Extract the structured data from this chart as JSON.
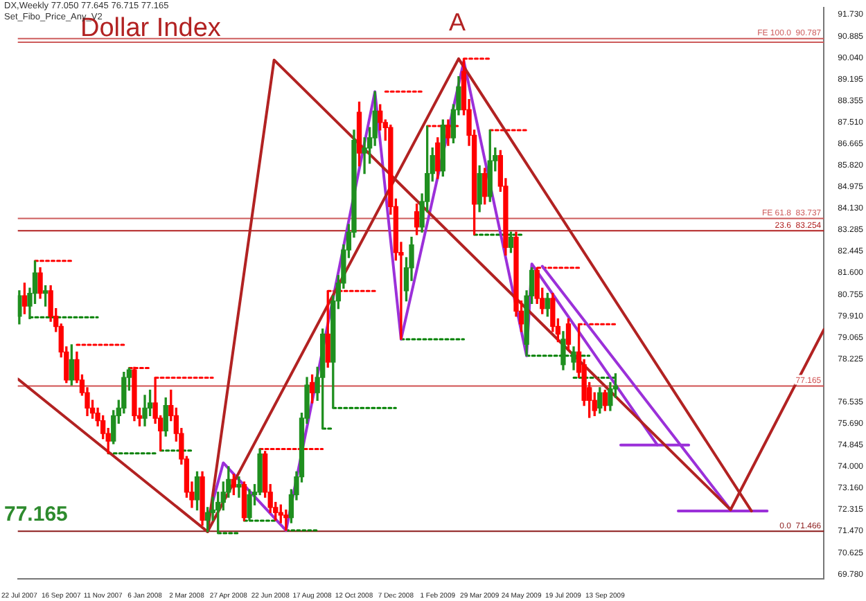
{
  "chart_data": {
    "type": "candlestick",
    "title": "Dollar Index",
    "subtitle": "DX,Weekly  77.050 77.645 76.715 77.165",
    "annotations": [
      "Set_Fibo_Price_Any_V2",
      "77.165",
      "A"
    ],
    "x": [
      "2007-07-22",
      "2007-07-29",
      "2007-08-05",
      "2007-08-12",
      "2007-08-19",
      "2007-08-26",
      "2007-09-02",
      "2007-09-09",
      "2007-09-16",
      "2007-09-23",
      "2007-09-30",
      "2007-10-07",
      "2007-10-14",
      "2007-10-21",
      "2007-10-28",
      "2007-11-04",
      "2007-11-11",
      "2007-11-18",
      "2007-11-25",
      "2007-12-02",
      "2007-12-09",
      "2007-12-16",
      "2007-12-23",
      "2007-12-30",
      "2008-01-06",
      "2008-01-13",
      "2008-01-20",
      "2008-01-27",
      "2008-02-03",
      "2008-02-10",
      "2008-02-17",
      "2008-02-24",
      "2008-03-02",
      "2008-03-09",
      "2008-03-16",
      "2008-03-23",
      "2008-03-30",
      "2008-04-06",
      "2008-04-13",
      "2008-04-20",
      "2008-04-27",
      "2008-05-04",
      "2008-05-11",
      "2008-05-18",
      "2008-05-25",
      "2008-06-01",
      "2008-06-08",
      "2008-06-15",
      "2008-06-22",
      "2008-06-29",
      "2008-07-06",
      "2008-07-13",
      "2008-07-20",
      "2008-07-27",
      "2008-08-03",
      "2008-08-10",
      "2008-08-17",
      "2008-08-24",
      "2008-08-31",
      "2008-09-07",
      "2008-09-14",
      "2008-09-21",
      "2008-09-28",
      "2008-10-05",
      "2008-10-12",
      "2008-10-19",
      "2008-10-26",
      "2008-11-02",
      "2008-11-09",
      "2008-11-16",
      "2008-11-23",
      "2008-11-30",
      "2008-12-07",
      "2008-12-14",
      "2008-12-21",
      "2008-12-28",
      "2009-01-04",
      "2009-01-11",
      "2009-01-18",
      "2009-01-25",
      "2009-02-01",
      "2009-02-08",
      "2009-02-15",
      "2009-02-22",
      "2009-03-01",
      "2009-03-08",
      "2009-03-15",
      "2009-03-22",
      "2009-03-29",
      "2009-04-05",
      "2009-04-12",
      "2009-04-19",
      "2009-04-26",
      "2009-05-03",
      "2009-05-10",
      "2009-05-17",
      "2009-05-24",
      "2009-05-31",
      "2009-06-07",
      "2009-06-14",
      "2009-06-21",
      "2009-06-28",
      "2009-07-05",
      "2009-07-12",
      "2009-07-19",
      "2009-07-26",
      "2009-08-02",
      "2009-08-09",
      "2009-08-16",
      "2009-08-23",
      "2009-08-30",
      "2009-09-06",
      "2009-09-13",
      "2009-09-20",
      "2009-09-27"
    ],
    "ohlc": [
      [
        79.9,
        80.9,
        79.6,
        80.7
      ],
      [
        80.7,
        81.2,
        80.0,
        80.3
      ],
      [
        80.3,
        81.0,
        79.8,
        80.8
      ],
      [
        80.8,
        82.07,
        80.4,
        81.6
      ],
      [
        81.6,
        81.8,
        80.6,
        80.8
      ],
      [
        80.8,
        81.1,
        80.3,
        80.9
      ],
      [
        80.9,
        81.1,
        79.7,
        79.9
      ],
      [
        79.9,
        80.2,
        79.3,
        79.5
      ],
      [
        79.5,
        79.6,
        78.3,
        78.5
      ],
      [
        78.5,
        78.7,
        77.3,
        77.4
      ],
      [
        77.4,
        78.78,
        77.2,
        78.2
      ],
      [
        78.2,
        78.5,
        77.3,
        77.4
      ],
      [
        77.4,
        77.6,
        76.8,
        76.9
      ],
      [
        76.9,
        77.1,
        76.0,
        76.3
      ],
      [
        76.3,
        76.6,
        75.9,
        76.1
      ],
      [
        76.1,
        76.3,
        75.6,
        75.8
      ],
      [
        75.8,
        76.0,
        75.1,
        75.3
      ],
      [
        75.3,
        75.5,
        74.52,
        75.0
      ],
      [
        75.0,
        76.2,
        74.9,
        76.0
      ],
      [
        76.0,
        76.6,
        75.7,
        76.3
      ],
      [
        76.3,
        77.7,
        76.1,
        77.5
      ],
      [
        77.5,
        77.87,
        77.0,
        77.8
      ],
      [
        77.8,
        77.9,
        75.8,
        76.0
      ],
      [
        76.0,
        76.3,
        75.6,
        75.9
      ],
      [
        75.9,
        76.8,
        75.6,
        76.3
      ],
      [
        76.3,
        77.0,
        76.0,
        76.5
      ],
      [
        76.5,
        77.49,
        75.7,
        75.9
      ],
      [
        75.9,
        76.0,
        74.63,
        75.4
      ],
      [
        75.4,
        76.7,
        75.2,
        76.4
      ],
      [
        76.4,
        77.0,
        75.8,
        76.0
      ],
      [
        76.0,
        76.3,
        75.0,
        75.3
      ],
      [
        75.3,
        75.5,
        74.1,
        74.3
      ],
      [
        74.3,
        74.4,
        72.8,
        73.0
      ],
      [
        73.0,
        73.4,
        72.4,
        72.7
      ],
      [
        72.7,
        73.8,
        72.3,
        73.6
      ],
      [
        73.6,
        73.8,
        71.7,
        71.9
      ],
      [
        71.9,
        72.4,
        71.45,
        72.2
      ],
      [
        72.2,
        72.8,
        71.9,
        72.3
      ],
      [
        72.3,
        73.0,
        71.39,
        72.6
      ],
      [
        72.6,
        73.4,
        72.3,
        73.0
      ],
      [
        73.0,
        74.0,
        72.8,
        73.5
      ],
      [
        73.5,
        73.7,
        72.9,
        73.2
      ],
      [
        73.2,
        73.6,
        72.8,
        73.3
      ],
      [
        73.3,
        73.4,
        71.88,
        72.0
      ],
      [
        72.0,
        73.1,
        71.9,
        72.9
      ],
      [
        72.9,
        73.3,
        72.5,
        73.0
      ],
      [
        73.0,
        74.69,
        72.9,
        74.5
      ],
      [
        74.5,
        74.6,
        72.8,
        73.0
      ],
      [
        73.0,
        73.3,
        72.2,
        72.4
      ],
      [
        72.4,
        72.6,
        71.9,
        72.2
      ],
      [
        72.2,
        72.5,
        71.8,
        72.1
      ],
      [
        72.1,
        72.3,
        71.5,
        72.0
      ],
      [
        72.0,
        73.1,
        71.8,
        72.9
      ],
      [
        72.9,
        73.8,
        72.7,
        73.6
      ],
      [
        73.6,
        76.1,
        73.4,
        75.9
      ],
      [
        75.9,
        77.5,
        75.7,
        77.2
      ],
      [
        77.3,
        77.6,
        76.5,
        76.9
      ],
      [
        76.9,
        77.9,
        76.6,
        77.5
      ],
      [
        77.5,
        79.4,
        75.49,
        79.2
      ],
      [
        79.2,
        80.89,
        77.9,
        78.1
      ],
      [
        78.1,
        80.7,
        76.3,
        80.5
      ],
      [
        80.5,
        81.5,
        80.2,
        81.2
      ],
      [
        81.2,
        82.7,
        81.0,
        82.5
      ],
      [
        82.5,
        83.5,
        82.2,
        83.2
      ],
      [
        83.2,
        87.2,
        83.0,
        86.8
      ],
      [
        87.9,
        88.3,
        85.8,
        86.3
      ],
      [
        86.3,
        86.9,
        85.5,
        86.5
      ],
      [
        86.5,
        87.3,
        85.9,
        86.9
      ],
      [
        86.9,
        88.71,
        86.6,
        87.95
      ],
      [
        87.95,
        88.2,
        87.2,
        87.5
      ],
      [
        87.5,
        87.6,
        86.8,
        87.3
      ],
      [
        87.3,
        87.4,
        83.9,
        84.2
      ],
      [
        84.2,
        84.5,
        82.1,
        82.4
      ],
      [
        82.4,
        82.8,
        79.0,
        82.3
      ],
      [
        80.9,
        82.2,
        80.5,
        81.8
      ],
      [
        81.8,
        83.0,
        81.3,
        82.7
      ],
      [
        84.0,
        84.3,
        83.1,
        83.4
      ],
      [
        83.4,
        84.7,
        83.2,
        84.4
      ],
      [
        84.4,
        87.36,
        84.0,
        85.5
      ],
      [
        85.5,
        86.5,
        85.2,
        86.2
      ],
      [
        86.7,
        86.9,
        85.3,
        85.6
      ],
      [
        85.6,
        87.6,
        85.4,
        87.4
      ],
      [
        87.4,
        87.6,
        86.6,
        86.9
      ],
      [
        86.9,
        88.2,
        86.7,
        88.0
      ],
      [
        88.0,
        89.3,
        87.8,
        88.9
      ],
      [
        89.5,
        90.0,
        87.8,
        88.0
      ],
      [
        88.0,
        88.4,
        86.6,
        87.0
      ],
      [
        87.0,
        87.2,
        83.1,
        84.3
      ],
      [
        84.3,
        85.8,
        84.0,
        85.5
      ],
      [
        85.5,
        85.7,
        84.3,
        84.6
      ],
      [
        84.6,
        87.2,
        84.4,
        86.0
      ],
      [
        86.0,
        86.5,
        85.6,
        86.2
      ],
      [
        86.2,
        86.4,
        84.8,
        85.0
      ],
      [
        85.0,
        85.3,
        82.3,
        82.6
      ],
      [
        82.6,
        83.2,
        82.4,
        83.0
      ],
      [
        83.0,
        83.2,
        79.9,
        80.1
      ],
      [
        80.1,
        80.5,
        79.3,
        79.6
      ],
      [
        78.8,
        80.9,
        78.35,
        80.7
      ],
      [
        80.7,
        81.8,
        80.4,
        81.7
      ],
      [
        81.7,
        81.8,
        80.4,
        80.6
      ],
      [
        80.6,
        81.0,
        80.0,
        80.2
      ],
      [
        80.2,
        80.8,
        79.9,
        80.6
      ],
      [
        80.6,
        80.8,
        79.3,
        79.5
      ],
      [
        79.5,
        79.8,
        78.9,
        79.2
      ],
      [
        78.0,
        79.3,
        77.8,
        79.0
      ],
      [
        79.6,
        79.8,
        78.6,
        78.8
      ],
      [
        78.1,
        78.7,
        77.8,
        78.5
      ],
      [
        78.5,
        79.59,
        77.5,
        77.7
      ],
      [
        78.0,
        78.2,
        76.4,
        76.6
      ],
      [
        77.1,
        77.3,
        75.93,
        76.6
      ],
      [
        76.6,
        76.9,
        76.0,
        76.2
      ],
      [
        76.3,
        77.1,
        76.1,
        76.9
      ],
      [
        76.9,
        77.0,
        76.2,
        76.4
      ],
      [
        76.4,
        77.3,
        76.2,
        77.05
      ],
      [
        77.05,
        77.645,
        76.715,
        77.165
      ]
    ],
    "series": [
      {
        "type": "line",
        "color": "#b22222",
        "x": [
          "2007-07-20",
          "2008-03-30",
          "2009-03-01",
          "2010-03-28"
        ],
        "values": [
          77.44,
          71.45,
          90.0,
          72.26
        ]
      },
      {
        "type": "line",
        "color": "#b22222",
        "x": [
          "2010-02-28",
          "2010-07-03"
        ],
        "values": [
          72.31,
          79.38
        ]
      },
      {
        "type": "line",
        "color": "#b22222",
        "x": [
          "2008-03-30",
          "2008-06-27",
          "2010-02-28"
        ],
        "values": [
          71.45,
          89.95,
          72.31
        ]
      },
      {
        "type": "line",
        "color": "#9b30d9",
        "x": [
          "2008-03-30",
          "2008-04-20",
          "2008-07-13",
          "2008-11-09",
          "2008-12-14",
          "2009-03-08",
          "2009-05-31",
          "2009-06-07",
          "2009-11-22"
        ],
        "values": [
          71.88,
          74.15,
          71.5,
          88.71,
          79.0,
          89.9,
          78.35,
          81.95,
          74.85
        ]
      },
      {
        "type": "line",
        "color": "#9b30d9",
        "x": [
          "2009-06-21",
          "2010-02-28"
        ],
        "values": [
          81.86,
          72.31
        ]
      },
      {
        "type": "line",
        "color": "#9b30d9",
        "x": [
          "2009-10-04",
          "2010-01-03"
        ],
        "values": [
          74.85,
          74.85
        ]
      },
      {
        "type": "line",
        "color": "#9b30d9",
        "x": [
          "2009-12-20",
          "2010-04-18"
        ],
        "values": [
          72.26,
          72.26
        ]
      },
      {
        "type": "line",
        "color": "#ff0000",
        "line_style": "dotted",
        "x": [
          "2007-08-12",
          "2007-09-30"
        ],
        "values": [
          82.07,
          82.07
        ]
      },
      {
        "type": "line",
        "color": "#ff0000",
        "line_style": "dotted",
        "x": [
          "2007-10-07",
          "2007-12-09"
        ],
        "values": [
          78.78,
          78.78
        ]
      },
      {
        "type": "line",
        "color": "#ff0000",
        "line_style": "dotted",
        "x": [
          "2007-12-16",
          "2008-01-13"
        ],
        "values": [
          77.87,
          77.87
        ]
      },
      {
        "type": "line",
        "color": "#ff0000",
        "line_style": "dotted",
        "x": [
          "2008-01-20",
          "2008-04-06"
        ],
        "values": [
          77.49,
          77.49
        ]
      },
      {
        "type": "line",
        "color": "#ff0000",
        "line_style": "dotted",
        "x": [
          "2008-06-08",
          "2008-08-31"
        ],
        "values": [
          74.69,
          74.69
        ]
      },
      {
        "type": "line",
        "color": "#ff0000",
        "line_style": "dotted",
        "x": [
          "2008-09-07",
          "2008-11-09"
        ],
        "values": [
          80.89,
          80.89
        ]
      },
      {
        "type": "line",
        "color": "#ff0000",
        "line_style": "dotted",
        "x": [
          "2008-11-23",
          "2009-01-11"
        ],
        "values": [
          88.71,
          88.71
        ]
      },
      {
        "type": "line",
        "color": "#ff0000",
        "line_style": "dotted",
        "x": [
          "2009-01-18",
          "2009-03-01"
        ],
        "values": [
          87.36,
          87.36
        ]
      },
      {
        "type": "line",
        "color": "#ff0000",
        "line_style": "dotted",
        "x": [
          "2009-03-08",
          "2009-04-12"
        ],
        "values": [
          90.0,
          90.0
        ]
      },
      {
        "type": "line",
        "color": "#ff0000",
        "line_style": "dotted",
        "x": [
          "2009-04-12",
          "2009-05-31"
        ],
        "values": [
          87.2,
          87.2
        ]
      },
      {
        "type": "line",
        "color": "#ff0000",
        "line_style": "dotted",
        "x": [
          "2009-06-07",
          "2009-08-09"
        ],
        "values": [
          81.8,
          81.8
        ]
      },
      {
        "type": "line",
        "color": "#ff0000",
        "line_style": "dotted",
        "x": [
          "2009-08-09",
          "2009-09-27"
        ],
        "values": [
          79.59,
          79.59
        ]
      },
      {
        "type": "line",
        "color": "#008000",
        "line_style": "dotted",
        "x": [
          "2007-08-05",
          "2007-11-04"
        ],
        "values": [
          79.86,
          79.86
        ]
      },
      {
        "type": "line",
        "color": "#008000",
        "line_style": "dotted",
        "x": [
          "2007-11-18",
          "2008-01-20"
        ],
        "values": [
          74.52,
          74.52
        ]
      },
      {
        "type": "line",
        "color": "#008000",
        "line_style": "dotted",
        "x": [
          "2008-01-27",
          "2008-03-09"
        ],
        "values": [
          74.63,
          74.63
        ]
      },
      {
        "type": "line",
        "color": "#008000",
        "line_style": "dotted",
        "x": [
          "2008-04-13",
          "2008-05-11"
        ],
        "values": [
          71.39,
          71.39
        ]
      },
      {
        "type": "line",
        "color": "#008000",
        "line_style": "dotted",
        "x": [
          "2008-05-18",
          "2008-06-29"
        ],
        "values": [
          71.88,
          71.88
        ]
      },
      {
        "type": "line",
        "color": "#008000",
        "line_style": "dotted",
        "x": [
          "2008-07-13",
          "2008-08-24"
        ],
        "values": [
          71.5,
          71.5
        ]
      },
      {
        "type": "line",
        "color": "#008000",
        "line_style": "dotted",
        "x": [
          "2008-08-31",
          "2008-09-14"
        ],
        "values": [
          75.49,
          75.49
        ]
      },
      {
        "type": "line",
        "color": "#008000",
        "line_style": "dotted",
        "x": [
          "2008-09-14",
          "2008-12-07"
        ],
        "values": [
          76.3,
          76.3
        ]
      },
      {
        "type": "line",
        "color": "#008000",
        "line_style": "dotted",
        "x": [
          "2008-12-14",
          "2009-03-08"
        ],
        "values": [
          79.0,
          79.0
        ]
      },
      {
        "type": "line",
        "color": "#008000",
        "line_style": "dotted",
        "x": [
          "2009-03-22",
          "2009-05-24"
        ],
        "values": [
          83.1,
          83.1
        ]
      },
      {
        "type": "line",
        "color": "#008000",
        "line_style": "dotted",
        "x": [
          "2009-05-31",
          "2009-08-23"
        ],
        "values": [
          78.35,
          78.35
        ]
      },
      {
        "type": "line",
        "color": "#008000",
        "line_style": "dotted",
        "x": [
          "2009-08-02",
          "2009-09-27"
        ],
        "values": [
          77.49,
          77.49
        ]
      }
    ],
    "ref_lines": [
      {
        "axis": "y",
        "value": 90.787,
        "label": "FE 100.0  90.787",
        "color": "#cd5c5c"
      },
      {
        "axis": "y",
        "value": 90.65,
        "label": null,
        "color": "#cd5c5c"
      },
      {
        "axis": "y",
        "value": 83.737,
        "label": "FE 61.8  83.737",
        "color": "#cd5c5c"
      },
      {
        "axis": "y",
        "value": 83.254,
        "label": "23.6  83.254",
        "color": "#b22222"
      },
      {
        "axis": "y",
        "value": 77.165,
        "label": "77.165",
        "color": "#d05050"
      },
      {
        "axis": "y",
        "value": 71.466,
        "label": "0.0  71.466",
        "color": "#8b1a1a"
      }
    ],
    "xlim": [
      "2007-07-20",
      "2010-07-03"
    ],
    "xticks": [
      {
        "value": "2007-07-22",
        "label": "22 Jul 2007"
      },
      {
        "value": "2007-09-16",
        "label": "16 Sep 2007"
      },
      {
        "value": "2007-11-11",
        "label": "11 Nov 2007"
      },
      {
        "value": "2008-01-06",
        "label": "6 Jan 2008"
      },
      {
        "value": "2008-03-02",
        "label": "2 Mar 2008"
      },
      {
        "value": "2008-04-27",
        "label": "27 Apr 2008"
      },
      {
        "value": "2008-06-22",
        "label": "22 Jun 2008"
      },
      {
        "value": "2008-08-17",
        "label": "17 Aug 2008"
      },
      {
        "value": "2008-10-12",
        "label": "12 Oct 2008"
      },
      {
        "value": "2008-12-07",
        "label": "7 Dec 2008"
      },
      {
        "value": "2009-02-01",
        "label": "1 Feb 2009"
      },
      {
        "value": "2009-03-29",
        "label": "29 Mar 2009"
      },
      {
        "value": "2009-05-24",
        "label": "24 May 2009"
      },
      {
        "value": "2009-07-19",
        "label": "19 Jul 2009"
      },
      {
        "value": "2009-09-13",
        "label": "13 Sep 2009"
      }
    ],
    "ylim": [
      69.6,
      92.0
    ],
    "yticks": [
      {
        "value": 91.73,
        "label": "91.730"
      },
      {
        "value": 90.885,
        "label": "90.885"
      },
      {
        "value": 90.04,
        "label": "90.040"
      },
      {
        "value": 89.195,
        "label": "89.195"
      },
      {
        "value": 88.355,
        "label": "88.355"
      },
      {
        "value": 87.51,
        "label": "87.510"
      },
      {
        "value": 86.665,
        "label": "86.665"
      },
      {
        "value": 85.82,
        "label": "85.820"
      },
      {
        "value": 84.975,
        "label": "84.975"
      },
      {
        "value": 84.13,
        "label": "84.130"
      },
      {
        "value": 83.285,
        "label": "83.285"
      },
      {
        "value": 82.445,
        "label": "82.445"
      },
      {
        "value": 81.6,
        "label": "81.600"
      },
      {
        "value": 80.755,
        "label": "80.755"
      },
      {
        "value": 79.91,
        "label": "79.910"
      },
      {
        "value": 79.065,
        "label": "79.065"
      },
      {
        "value": 78.225,
        "label": "78.225"
      },
      {
        "value": 76.535,
        "label": "76.535"
      },
      {
        "value": 75.69,
        "label": "75.690"
      },
      {
        "value": 74.845,
        "label": "74.845"
      },
      {
        "value": 74.0,
        "label": "74.000"
      },
      {
        "value": 73.16,
        "label": "73.160"
      },
      {
        "value": 72.315,
        "label": "72.315"
      },
      {
        "value": 71.47,
        "label": "71.470"
      },
      {
        "value": 70.625,
        "label": "70.625"
      },
      {
        "value": 69.78,
        "label": "69.780"
      }
    ],
    "grid": false,
    "legend": false
  }
}
